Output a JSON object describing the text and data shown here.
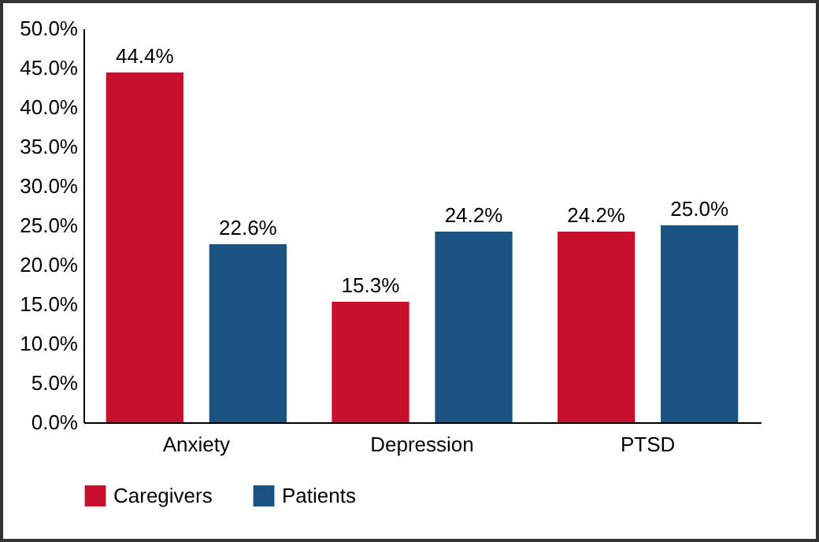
{
  "chart_data": {
    "type": "bar",
    "categories": [
      "Anxiety",
      "Depression",
      "PTSD"
    ],
    "series": [
      {
        "name": "Caregivers",
        "color": "#c8102e",
        "values": [
          44.4,
          15.3,
          24.2
        ],
        "value_labels": [
          "44.4%",
          "15.3%",
          "24.2%"
        ]
      },
      {
        "name": "Patients",
        "color": "#1a5282",
        "values": [
          22.6,
          24.2,
          25.0
        ],
        "value_labels": [
          "22.6%",
          "24.2%",
          "25.0%"
        ]
      }
    ],
    "ylim": [
      0,
      50
    ],
    "yticks": [
      {
        "value": 0,
        "label": "0.0%"
      },
      {
        "value": 5,
        "label": "5.0%"
      },
      {
        "value": 10,
        "label": "10.0%"
      },
      {
        "value": 15,
        "label": "15.0%"
      },
      {
        "value": 20,
        "label": "20.0%"
      },
      {
        "value": 25,
        "label": "25.0%"
      },
      {
        "value": 30,
        "label": "30.0%"
      },
      {
        "value": 35,
        "label": "35.0%"
      },
      {
        "value": 40,
        "label": "40.0%"
      },
      {
        "value": 45,
        "label": "45.0%"
      },
      {
        "value": 50,
        "label": "50.0%"
      }
    ],
    "grid": false,
    "legend": "bottom"
  }
}
